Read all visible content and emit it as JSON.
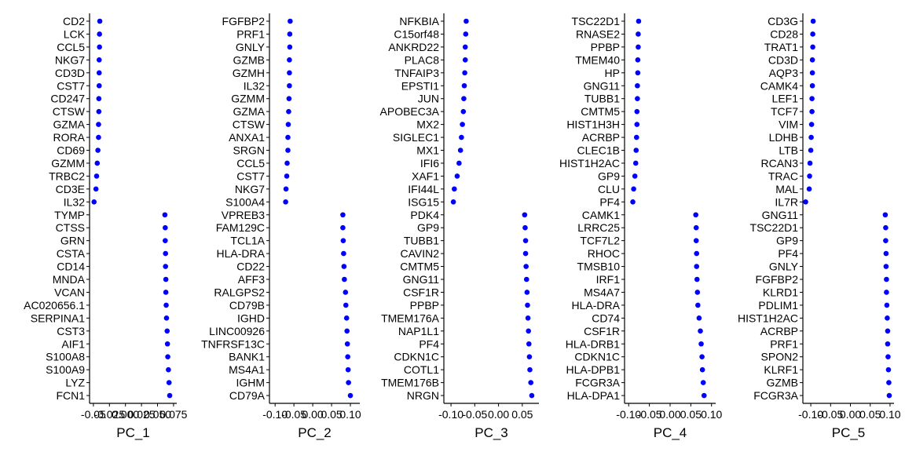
{
  "chart_data": [
    {
      "type": "scatter",
      "xlabel": "PC_1",
      "xlim": [
        -0.056,
        0.08
      ],
      "ticks": [
        -0.05,
        -0.025,
        0.0,
        0.025,
        0.05,
        0.075
      ],
      "tick_labels": [
        "-0.05",
        "-0.025",
        "0.000",
        "0.025",
        "0.050",
        "0.075"
      ],
      "genes": [
        "CD2",
        "LCK",
        "CCL5",
        "NKG7",
        "CD3D",
        "CST7",
        "CD247",
        "CTSW",
        "GZMA",
        "RORA",
        "CD69",
        "GZMM",
        "TRBC2",
        "CD3E",
        "IL32",
        "TYMP",
        "CTSS",
        "GRN",
        "CSTA",
        "CD14",
        "MNDA",
        "VCAN",
        "AC020656.1",
        "SERPINA1",
        "CST3",
        "AIF1",
        "S100A8",
        "S100A9",
        "LYZ",
        "FCN1"
      ],
      "values": [
        -0.04,
        -0.0405,
        -0.0405,
        -0.041,
        -0.041,
        -0.041,
        -0.0415,
        -0.0415,
        -0.042,
        -0.042,
        -0.043,
        -0.044,
        -0.045,
        -0.046,
        -0.049,
        0.0615,
        0.062,
        0.062,
        0.0625,
        0.0625,
        0.063,
        0.063,
        0.0635,
        0.064,
        0.065,
        0.0655,
        0.066,
        0.067,
        0.068,
        0.069
      ]
    },
    {
      "type": "scatter",
      "xlabel": "PC_2",
      "xlim": [
        -0.115,
        0.125
      ],
      "ticks": [
        -0.1,
        -0.05,
        0.0,
        0.05,
        0.1
      ],
      "tick_labels": [
        "-0.10",
        "-0.05",
        "0.00",
        "0.05",
        "0.10"
      ],
      "genes": [
        "FGFBP2",
        "PRF1",
        "GNLY",
        "GZMB",
        "GZMH",
        "IL32",
        "GZMM",
        "GZMA",
        "CTSW",
        "ANXA1",
        "SRGN",
        "CCL5",
        "CST7",
        "NKG7",
        "S100A4",
        "VPREB3",
        "FAM129C",
        "TCL1A",
        "HLA-DRA",
        "CD22",
        "AFF3",
        "RALGPS2",
        "CD79B",
        "IGHD",
        "LINC00926",
        "TNFRSF13C",
        "BANK1",
        "MS4A1",
        "IGHM",
        "CD79A"
      ],
      "values": [
        -0.06,
        -0.061,
        -0.061,
        -0.062,
        -0.062,
        -0.062,
        -0.063,
        -0.064,
        -0.065,
        -0.066,
        -0.066,
        -0.068,
        -0.069,
        -0.071,
        -0.072,
        0.08,
        0.08,
        0.081,
        0.082,
        0.083,
        0.084,
        0.087,
        0.088,
        0.09,
        0.091,
        0.092,
        0.093,
        0.094,
        0.095,
        0.1
      ]
    },
    {
      "type": "scatter",
      "xlabel": "PC_3",
      "xlim": [
        -0.115,
        0.085
      ],
      "ticks": [
        -0.1,
        -0.05,
        0.0,
        0.05
      ],
      "tick_labels": [
        "-0.10",
        "-0.05",
        "0.00",
        "0.05"
      ],
      "genes": [
        "NFKBIA",
        "C15orf48",
        "ANKRD22",
        "PLAC8",
        "TNFAIP3",
        "EPSTI1",
        "JUN",
        "APOBEC3A",
        "MX2",
        "SIGLEC1",
        "MX1",
        "IFI6",
        "XAF1",
        "IFI44L",
        "ISG15",
        "PDK4",
        "GP9",
        "TUBB1",
        "CAVIN2",
        "CMTM5",
        "GNG11",
        "CSF1R",
        "PPBP",
        "TMEM176A",
        "NAP1L1",
        "PF4",
        "CDKN1C",
        "COTL1",
        "TMEM176B",
        "NRGN"
      ],
      "values": [
        -0.068,
        -0.069,
        -0.07,
        -0.07,
        -0.071,
        -0.072,
        -0.073,
        -0.074,
        -0.076,
        -0.078,
        -0.08,
        -0.083,
        -0.087,
        -0.093,
        -0.095,
        0.055,
        0.056,
        0.057,
        0.057,
        0.058,
        0.059,
        0.06,
        0.061,
        0.062,
        0.063,
        0.064,
        0.065,
        0.066,
        0.068,
        0.07
      ]
    },
    {
      "type": "scatter",
      "xlabel": "PC_4",
      "xlim": [
        -0.11,
        0.11
      ],
      "ticks": [
        -0.1,
        -0.05,
        0.0,
        0.05,
        0.1
      ],
      "tick_labels": [
        "-0.10",
        "-0.05",
        "0.00",
        "0.05",
        "0.10"
      ],
      "genes": [
        "TSC22D1",
        "RNASE2",
        "PPBP",
        "TMEM40",
        "HP",
        "GNG11",
        "TUBB1",
        "CMTM5",
        "HIST1H3H",
        "ACRBP",
        "CLEC1B",
        "HIST1H2AC",
        "GP9",
        "CLU",
        "PF4",
        "CAMK1",
        "LRRC25",
        "TCF7L2",
        "RHOC",
        "TMSB10",
        "IRF1",
        "MS4A7",
        "HLA-DRA",
        "CD74",
        "CSF1R",
        "HLA-DRB1",
        "CDKN1C",
        "HLA-DPB1",
        "FCGR3A",
        "HLA-DPA1"
      ],
      "values": [
        -0.076,
        -0.077,
        -0.077,
        -0.078,
        -0.078,
        -0.079,
        -0.079,
        -0.08,
        -0.08,
        -0.081,
        -0.082,
        -0.083,
        -0.085,
        -0.088,
        -0.09,
        0.062,
        0.063,
        0.063,
        0.064,
        0.064,
        0.065,
        0.066,
        0.067,
        0.07,
        0.073,
        0.075,
        0.077,
        0.078,
        0.08,
        0.082
      ]
    },
    {
      "type": "scatter",
      "xlabel": "PC_5",
      "xlim": [
        -0.12,
        0.11
      ],
      "ticks": [
        -0.1,
        -0.05,
        0.0,
        0.05,
        0.1
      ],
      "tick_labels": [
        "-0.10",
        "-0.05",
        "0.00",
        "0.05",
        "0.10"
      ],
      "genes": [
        "CD3G",
        "CD28",
        "TRAT1",
        "CD3D",
        "AQP3",
        "CAMK4",
        "LEF1",
        "TCF7",
        "VIM",
        "LDHB",
        "LTB",
        "RCAN3",
        "TRAC",
        "MAL",
        "IL7R",
        "GNG11",
        "TSC22D1",
        "GP9",
        "PF4",
        "GNLY",
        "FGFBP2",
        "KLRD1",
        "PDLIM1",
        "HIST1H2AC",
        "ACRBP",
        "PRF1",
        "SPON2",
        "KLRF1",
        "GZMB",
        "FCGR3A"
      ],
      "values": [
        -0.094,
        -0.095,
        -0.095,
        -0.096,
        -0.096,
        -0.096,
        -0.097,
        -0.097,
        -0.098,
        -0.099,
        -0.1,
        -0.102,
        -0.103,
        -0.104,
        -0.113,
        0.088,
        0.089,
        0.089,
        0.09,
        0.09,
        0.091,
        0.091,
        0.092,
        0.093,
        0.094,
        0.094,
        0.095,
        0.096,
        0.097,
        0.098
      ]
    }
  ],
  "colors": {
    "point": "#0000ff",
    "axis": "#000000"
  }
}
